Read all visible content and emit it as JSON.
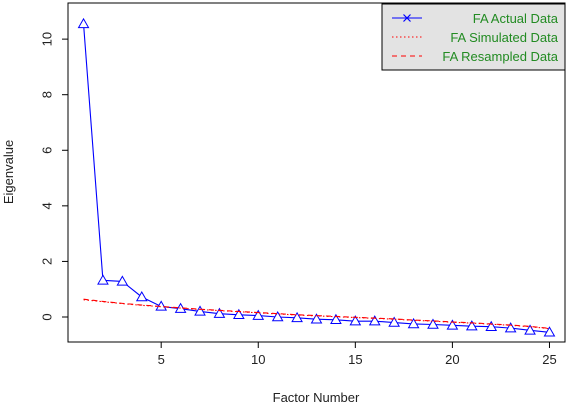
{
  "chart_data": {
    "type": "line",
    "title": "",
    "xlabel": "Factor Number",
    "ylabel": "Eigenvalue",
    "xlim": [
      0.2,
      25.8
    ],
    "ylim": [
      -0.9,
      11.3
    ],
    "xticks": [
      5,
      10,
      15,
      20,
      25
    ],
    "yticks": [
      0,
      2,
      4,
      6,
      8,
      10
    ],
    "grid": false,
    "legend_position": "top-right",
    "series": [
      {
        "name": "FA  Actual Data",
        "style": "line-with-triangle-markers",
        "color": "#0000ff",
        "x": [
          1,
          2,
          3,
          4,
          5,
          6,
          7,
          8,
          9,
          10,
          11,
          12,
          13,
          14,
          15,
          16,
          17,
          18,
          19,
          20,
          21,
          22,
          23,
          24,
          25
        ],
        "values": [
          10.55,
          1.32,
          1.28,
          0.72,
          0.38,
          0.3,
          0.2,
          0.12,
          0.08,
          0.05,
          0.0,
          -0.03,
          -0.08,
          -0.1,
          -0.15,
          -0.15,
          -0.2,
          -0.25,
          -0.27,
          -0.3,
          -0.33,
          -0.35,
          -0.4,
          -0.48,
          -0.55
        ]
      },
      {
        "name": "FA  Simulated Data",
        "style": "dotted",
        "color": "#ff0000",
        "x": [
          1,
          2,
          3,
          4,
          5,
          6,
          7,
          8,
          9,
          10,
          11,
          12,
          13,
          14,
          15,
          16,
          17,
          18,
          19,
          20,
          21,
          22,
          23,
          24,
          25
        ],
        "values": [
          0.62,
          0.55,
          0.48,
          0.42,
          0.37,
          0.32,
          0.27,
          0.23,
          0.19,
          0.15,
          0.11,
          0.07,
          0.04,
          0.01,
          -0.02,
          -0.05,
          -0.08,
          -0.12,
          -0.15,
          -0.19,
          -0.22,
          -0.26,
          -0.3,
          -0.35,
          -0.42
        ]
      },
      {
        "name": "FA  Resampled Data",
        "style": "dashed",
        "color": "#ff0000",
        "x": [
          1,
          2,
          3,
          4,
          5,
          6,
          7,
          8,
          9,
          10,
          11,
          12,
          13,
          14,
          15,
          16,
          17,
          18,
          19,
          20,
          21,
          22,
          23,
          24,
          25
        ],
        "values": [
          0.64,
          0.56,
          0.49,
          0.43,
          0.38,
          0.33,
          0.28,
          0.24,
          0.2,
          0.16,
          0.12,
          0.08,
          0.05,
          0.02,
          -0.01,
          -0.04,
          -0.07,
          -0.11,
          -0.14,
          -0.18,
          -0.21,
          -0.25,
          -0.29,
          -0.34,
          -0.41
        ]
      }
    ]
  },
  "legend": {
    "text_color": "#228b22",
    "background": "#e3e3e3"
  }
}
